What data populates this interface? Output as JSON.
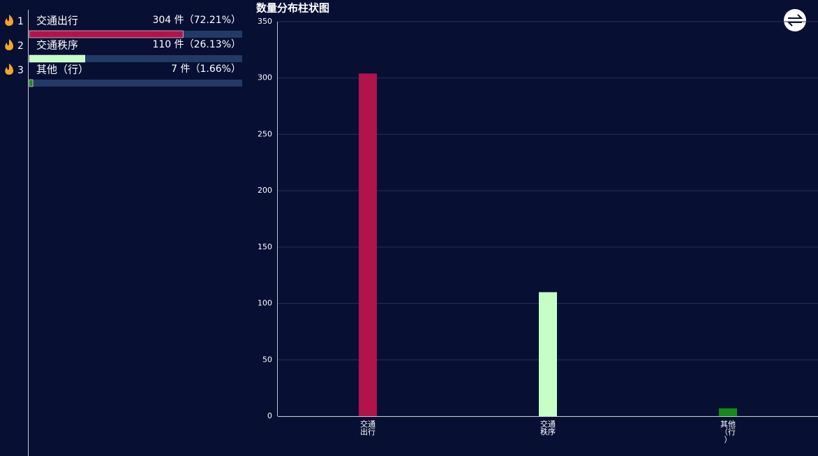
{
  "ranking": {
    "items": [
      {
        "rank": 1,
        "name": "交通出行",
        "label": "304 件（72.21%）",
        "percent": 72.21,
        "color": "#b0144a"
      },
      {
        "rank": 2,
        "name": "交通秩序",
        "label": "110 件（26.13%）",
        "percent": 26.13,
        "color": "#c6ffc6"
      },
      {
        "rank": 3,
        "name": "其他（行）",
        "label": "7 件（1.66%）",
        "percent": 1.66,
        "color": "#138a1a"
      }
    ]
  },
  "chart_data": {
    "type": "bar",
    "title": "数量分布柱状图",
    "categories": [
      "交通出行",
      "交通秩序",
      "其他（行）"
    ],
    "values": [
      304,
      110,
      7
    ],
    "colors": [
      "#b0144a",
      "#c6ffc6",
      "#138a1a"
    ],
    "ylim": [
      0,
      350
    ],
    "yticks": [
      0,
      50,
      100,
      150,
      200,
      250,
      300,
      350
    ],
    "grid": true
  }
}
